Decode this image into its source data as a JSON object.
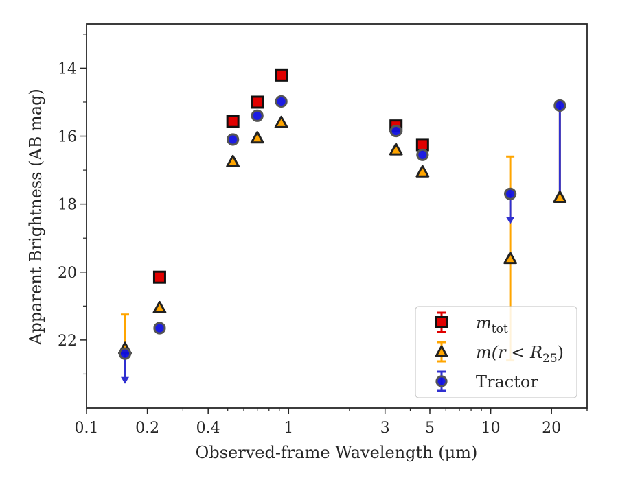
{
  "chart_data": {
    "type": "scatter",
    "xlabel": "Observed-frame Wavelength (μm)",
    "ylabel": "Apparent Brightness (AB mag)",
    "x_scale": "log",
    "xlim": [
      0.1,
      30
    ],
    "ylim": [
      24.0,
      12.7
    ],
    "y_inverted": true,
    "x_ticks": [
      0.1,
      0.2,
      0.4,
      1,
      3,
      5,
      10,
      20
    ],
    "x_tick_labels": [
      "0.1",
      "0.2",
      "0.4",
      "1",
      "3",
      "5",
      "10",
      "20"
    ],
    "y_ticks": [
      14,
      16,
      18,
      20,
      22
    ],
    "y_tick_labels": [
      "14",
      "16",
      "18",
      "20",
      "22"
    ],
    "grid": false,
    "legend": {
      "position": "lower-right",
      "entries": [
        {
          "series": "mtot",
          "label_main": "m",
          "label_sub": "tot"
        },
        {
          "series": "mr25",
          "label_main": "m(r < R",
          "label_sub": "25",
          "label_close": ")"
        },
        {
          "series": "tractor",
          "label_main": "Tractor"
        }
      ]
    },
    "series": [
      {
        "key": "mtot",
        "marker": "square",
        "color": "#e00000",
        "edge": "#111111",
        "points": [
          {
            "x": 0.23,
            "y": 20.15
          },
          {
            "x": 0.53,
            "y": 15.57
          },
          {
            "x": 0.7,
            "y": 15.0
          },
          {
            "x": 0.92,
            "y": 14.2
          },
          {
            "x": 3.4,
            "y": 15.7
          },
          {
            "x": 4.6,
            "y": 16.25
          }
        ]
      },
      {
        "key": "mr25",
        "marker": "triangle",
        "color": "#ffa500",
        "edge": "#222222",
        "errcolor": "#ffa500",
        "points": [
          {
            "x": 0.155,
            "y": 22.25,
            "err_lo": 1.0
          },
          {
            "x": 0.23,
            "y": 21.05
          },
          {
            "x": 0.53,
            "y": 16.75
          },
          {
            "x": 0.7,
            "y": 16.05
          },
          {
            "x": 0.92,
            "y": 15.6
          },
          {
            "x": 3.4,
            "y": 16.4
          },
          {
            "x": 4.6,
            "y": 17.05
          },
          {
            "x": 12.5,
            "y": 19.6,
            "err_lo": 3.0,
            "err_hi": 3.0
          },
          {
            "x": 22.0,
            "y": 17.8,
            "err_lo": 2.8
          }
        ]
      },
      {
        "key": "tractor",
        "marker": "circle",
        "color": "#1010e0",
        "edge": "#555555",
        "errcolor": "#3030d0",
        "points": [
          {
            "x": 0.155,
            "y": 22.4,
            "upper_limit": true
          },
          {
            "x": 0.23,
            "y": 21.65
          },
          {
            "x": 0.53,
            "y": 16.1
          },
          {
            "x": 0.7,
            "y": 15.4
          },
          {
            "x": 0.92,
            "y": 14.98
          },
          {
            "x": 3.4,
            "y": 15.85
          },
          {
            "x": 4.6,
            "y": 16.55
          },
          {
            "x": 12.5,
            "y": 17.7,
            "upper_limit": true
          },
          {
            "x": 22.0,
            "y": 15.1,
            "err_hi": 2.8
          }
        ]
      }
    ]
  }
}
